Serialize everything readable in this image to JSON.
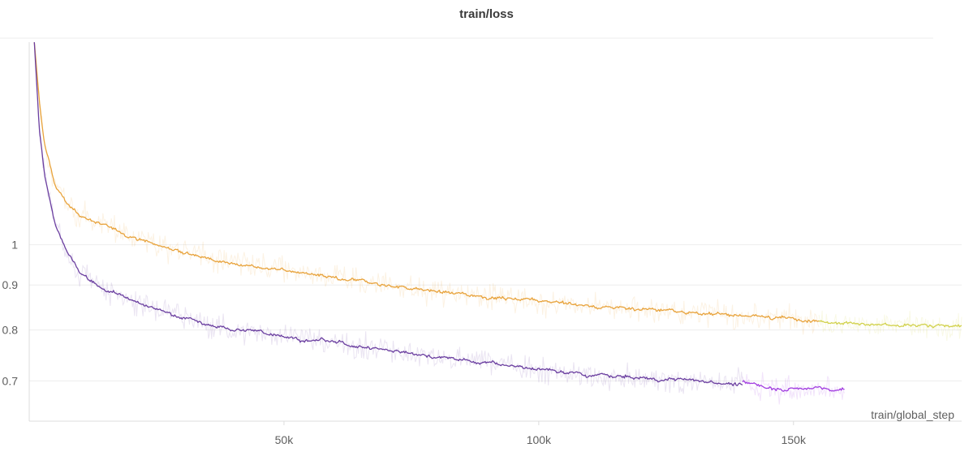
{
  "chart_data": {
    "type": "line",
    "title": "train/loss",
    "xlabel": "train/global_step",
    "ylabel": "",
    "y_scale": "log",
    "xlim": [
      0,
      183000
    ],
    "ylim": [
      0.63,
      1.7
    ],
    "grid": true,
    "x_ticks": [
      {
        "value": 50000,
        "label": "50k"
      },
      {
        "value": 100000,
        "label": "100k"
      },
      {
        "value": 150000,
        "label": "150k"
      }
    ],
    "y_ticks": [
      {
        "value": 0.7,
        "label": "0.7"
      },
      {
        "value": 0.8,
        "label": "0.8"
      },
      {
        "value": 0.9,
        "label": "0.9"
      },
      {
        "value": 1.0,
        "label": "1"
      }
    ],
    "series": [
      {
        "color": "#e8a33c",
        "x": [
          1000,
          2000,
          3000,
          5000,
          7500,
          10000,
          15000,
          20000,
          25000,
          30000,
          35000,
          40000,
          45000,
          50000,
          55000,
          60000,
          70000,
          80000,
          90000,
          100000,
          110000,
          120000,
          130000,
          140000,
          145000,
          150000,
          155000
        ],
        "y": [
          1.7,
          1.45,
          1.3,
          1.17,
          1.11,
          1.08,
          1.05,
          1.025,
          1.0,
          0.985,
          0.965,
          0.955,
          0.945,
          0.94,
          0.925,
          0.915,
          0.9,
          0.885,
          0.873,
          0.862,
          0.852,
          0.845,
          0.838,
          0.83,
          0.827,
          0.825,
          0.82
        ]
      },
      {
        "color": "#d2d24e",
        "x": [
          155000,
          160000,
          165000,
          170000,
          175000,
          180000,
          183000
        ],
        "y": [
          0.818,
          0.815,
          0.813,
          0.81,
          0.808,
          0.807,
          0.81
        ]
      },
      {
        "color": "#6b3fa0",
        "x": [
          1000,
          2000,
          3000,
          5000,
          7500,
          10000,
          15000,
          20000,
          25000,
          30000,
          35000,
          40000,
          45000,
          50000,
          55000,
          60000,
          65000,
          70000,
          75000,
          80000,
          85000,
          90000,
          95000,
          100000,
          110000,
          120000,
          130000,
          140000
        ],
        "y": [
          1.7,
          1.35,
          1.2,
          1.06,
          0.98,
          0.93,
          0.89,
          0.865,
          0.845,
          0.83,
          0.81,
          0.8,
          0.795,
          0.79,
          0.78,
          0.775,
          0.765,
          0.76,
          0.752,
          0.745,
          0.74,
          0.735,
          0.728,
          0.72,
          0.71,
          0.705,
          0.7,
          0.695
        ]
      },
      {
        "color": "#a23ee0",
        "x": [
          140000,
          143000,
          146000,
          149000,
          152000,
          155000,
          158000,
          160000
        ],
        "y": [
          0.698,
          0.692,
          0.688,
          0.686,
          0.684,
          0.688,
          0.682,
          0.685
        ]
      }
    ]
  }
}
